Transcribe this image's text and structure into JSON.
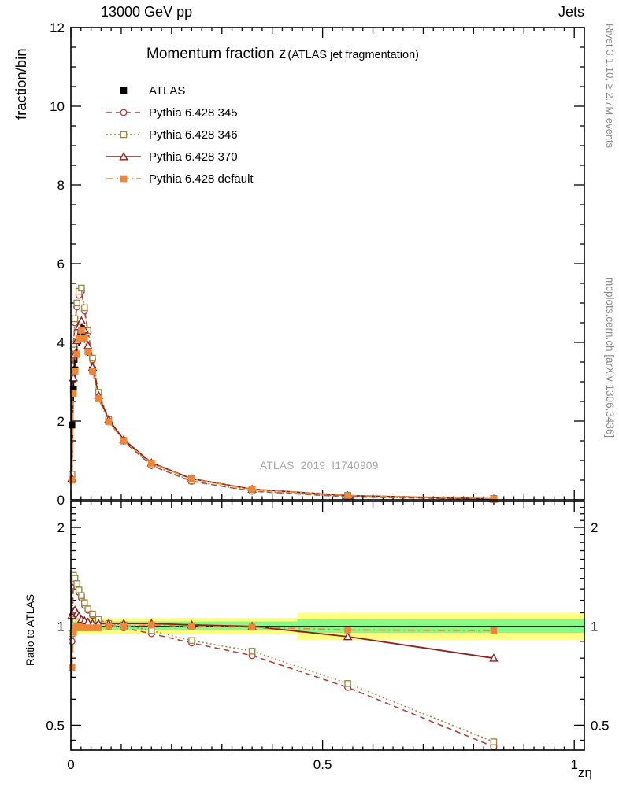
{
  "header": {
    "left": "13000 GeV pp",
    "right": "Jets"
  },
  "chart_data": {
    "type": "line",
    "title": "Momentum fraction z",
    "subtitle": "(ATLAS jet fragmentation)",
    "watermark": "ATLAS_2019_I1740909",
    "xlabel": "zη",
    "side_labels": {
      "right_top": "Rivet 3.1.10, ≥ 2.7M events",
      "right_bottom": "mcplots.cern.ch [arXiv:1306.3436]"
    },
    "xlim": [
      0,
      1.02
    ],
    "xticks": [
      0,
      0.5,
      1
    ],
    "panels": [
      {
        "ylabel": "fraction/bin",
        "scale": "linear",
        "ylim": [
          0,
          12
        ],
        "yticks": [
          0,
          2,
          4,
          6,
          8,
          10,
          12
        ]
      },
      {
        "ylabel": "Ratio to ATLAS",
        "scale": "log",
        "ylim": [
          0.42,
          2.4
        ],
        "yticks": [
          0.5,
          1,
          2
        ]
      }
    ],
    "x": [
      0.002,
      0.005,
      0.008,
      0.012,
      0.016,
      0.021,
      0.027,
      0.034,
      0.043,
      0.055,
      0.075,
      0.105,
      0.16,
      0.24,
      0.36,
      0.55,
      0.84
    ],
    "series": [
      {
        "name": "ATLAS",
        "color": "#000000",
        "marker": "square-filled",
        "line": "none",
        "values": [
          1.9,
          2.8,
          3.3,
          3.7,
          4.1,
          4.35,
          4.15,
          3.8,
          3.3,
          2.6,
          2.0,
          1.5,
          0.92,
          0.53,
          0.27,
          0.115,
          0.03
        ],
        "errors": [
          1.15,
          0.3,
          0.25,
          0.22,
          0.2,
          0.18,
          0.16,
          0.14,
          0.12,
          0.1,
          0.08,
          0.06,
          0.05,
          0.03,
          0.02,
          0.012,
          0.006
        ]
      },
      {
        "name": "Pythia 6.428 345",
        "color": "#b0413e",
        "marker": "circle-open",
        "line": "dashed",
        "values": [
          0.6,
          3.85,
          4.5,
          4.9,
          5.2,
          5.3,
          4.8,
          4.25,
          3.56,
          2.7,
          2.02,
          1.49,
          0.87,
          0.47,
          0.22,
          0.075,
          0.013
        ],
        "ratio": [
          0.9,
          1.37,
          1.36,
          1.32,
          1.27,
          1.22,
          1.16,
          1.12,
          1.08,
          1.04,
          1.01,
          0.99,
          0.95,
          0.89,
          0.815,
          0.652,
          0.43
        ]
      },
      {
        "name": "Pythia 6.428 346",
        "color": "#9a8a45",
        "marker": "square-open",
        "line": "dotted",
        "values": [
          0.65,
          3.95,
          4.6,
          5.0,
          5.3,
          5.38,
          4.88,
          4.3,
          3.6,
          2.73,
          2.04,
          1.51,
          0.89,
          0.48,
          0.227,
          0.077,
          0.013
        ],
        "ratio": [
          0.95,
          1.43,
          1.4,
          1.35,
          1.29,
          1.24,
          1.18,
          1.13,
          1.09,
          1.05,
          1.02,
          1.01,
          0.97,
          0.905,
          0.84,
          0.67,
          0.445
        ]
      },
      {
        "name": "Pythia 6.428 370",
        "color": "#8e1f1f",
        "marker": "triangle-open",
        "line": "solid",
        "values": [
          0.55,
          3.1,
          3.7,
          4.05,
          4.4,
          4.55,
          4.32,
          3.92,
          3.37,
          2.65,
          2.04,
          1.53,
          0.94,
          0.535,
          0.27,
          0.107,
          0.024
        ],
        "ratio": [
          1.08,
          1.11,
          1.12,
          1.095,
          1.075,
          1.05,
          1.04,
          1.03,
          1.02,
          1.02,
          1.02,
          1.02,
          1.02,
          1.01,
          1.0,
          0.93,
          0.8
        ]
      },
      {
        "name": "Pythia 6.428 default",
        "color": "#ef8636",
        "marker": "square-filled",
        "line": "dashdot",
        "values": [
          0.5,
          2.7,
          3.27,
          3.7,
          4.1,
          4.31,
          4.11,
          3.76,
          3.27,
          2.57,
          1.98,
          1.5,
          0.93,
          0.53,
          0.268,
          0.112,
          0.029
        ],
        "ratio": [
          0.75,
          0.96,
          0.99,
          1.0,
          1.0,
          0.99,
          0.99,
          0.99,
          0.99,
          0.99,
          1.0,
          1.0,
          1.01,
          1.0,
          0.995,
          0.975,
          0.97
        ]
      }
    ],
    "ratio_bands": {
      "yellow_color": "#ffff80",
      "green_color": "#86f986",
      "reference_line": 1.0,
      "segments": [
        {
          "x0": 0,
          "x1": 0.45,
          "yellow": [
            0.95,
            1.06
          ],
          "green": [
            0.975,
            1.035
          ]
        },
        {
          "x0": 0.45,
          "x1": 1.02,
          "yellow": [
            0.91,
            1.1
          ],
          "green": [
            0.955,
            1.05
          ]
        }
      ]
    },
    "atlas_ratio_error": {
      "x": 0.002,
      "lo": 0.7,
      "hi": 1.42
    }
  }
}
